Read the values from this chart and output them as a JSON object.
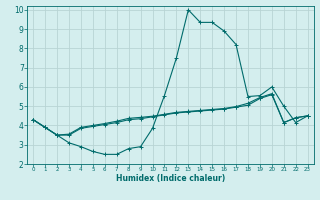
{
  "xlabel": "Humidex (Indice chaleur)",
  "bg_color": "#d4eeee",
  "grid_color": "#b8d4d4",
  "line_color": "#006b6b",
  "spine_color": "#006b6b",
  "xlim": [
    -0.5,
    23.5
  ],
  "ylim": [
    2,
    10.2
  ],
  "xticks": [
    0,
    1,
    2,
    3,
    4,
    5,
    6,
    7,
    8,
    9,
    10,
    11,
    12,
    13,
    14,
    15,
    16,
    17,
    18,
    19,
    20,
    21,
    22,
    23
  ],
  "yticks": [
    2,
    3,
    4,
    5,
    6,
    7,
    8,
    9,
    10
  ],
  "line1_x": [
    0,
    1,
    2,
    3,
    4,
    5,
    6,
    7,
    8,
    9,
    10,
    11,
    12,
    13,
    14,
    15,
    16,
    17,
    18,
    19,
    20,
    21,
    22,
    23
  ],
  "line1_y": [
    4.3,
    3.9,
    3.5,
    3.1,
    2.9,
    2.65,
    2.5,
    2.5,
    2.8,
    2.9,
    3.85,
    5.55,
    7.5,
    10.0,
    9.35,
    9.35,
    8.9,
    8.2,
    5.5,
    5.55,
    6.0,
    5.0,
    4.15,
    4.5
  ],
  "line2_x": [
    0,
    1,
    2,
    3,
    4,
    5,
    6,
    7,
    8,
    9,
    10,
    11,
    12,
    13,
    14,
    15,
    16,
    17,
    18,
    19,
    20,
    21,
    22,
    23
  ],
  "line2_y": [
    4.3,
    3.9,
    3.5,
    3.5,
    3.85,
    3.95,
    4.05,
    4.15,
    4.3,
    4.35,
    4.45,
    4.55,
    4.65,
    4.7,
    4.75,
    4.8,
    4.85,
    4.95,
    5.05,
    5.4,
    5.6,
    4.15,
    4.4,
    4.5
  ],
  "line3_x": [
    0,
    1,
    2,
    3,
    4,
    5,
    6,
    7,
    8,
    9,
    10,
    11,
    12,
    13,
    14,
    15,
    16,
    17,
    18,
    19,
    20,
    21,
    22,
    23
  ],
  "line3_y": [
    4.3,
    3.9,
    3.5,
    3.55,
    3.9,
    4.0,
    4.1,
    4.22,
    4.37,
    4.42,
    4.48,
    4.58,
    4.68,
    4.73,
    4.78,
    4.83,
    4.88,
    4.98,
    5.15,
    5.45,
    5.65,
    4.15,
    4.4,
    4.5
  ]
}
